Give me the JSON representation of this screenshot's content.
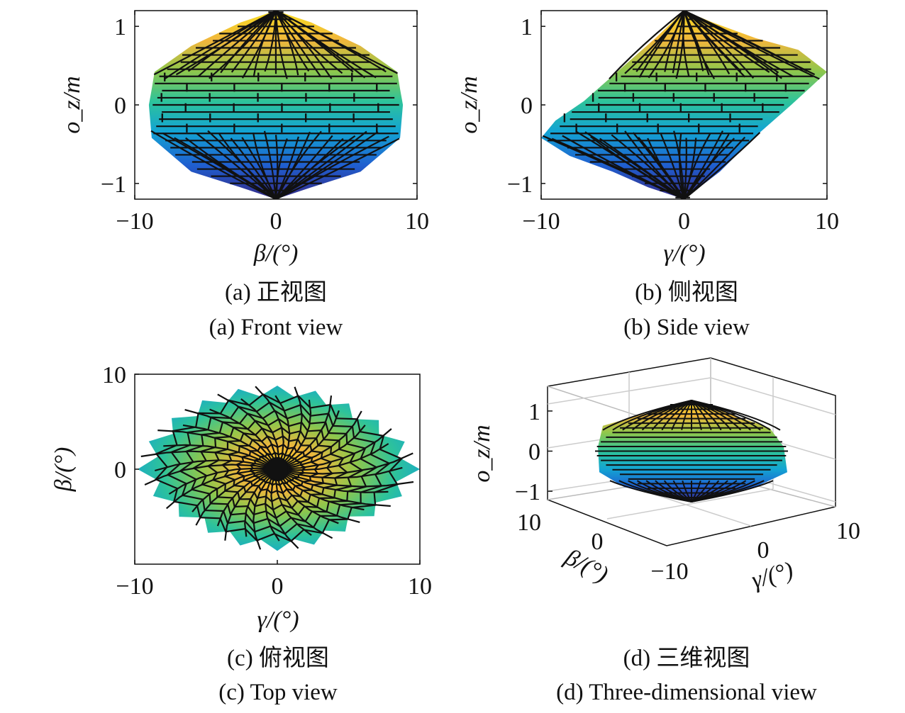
{
  "colors": {
    "colormap": [
      "#352a87",
      "#1569d8",
      "#13a4d3",
      "#26c39c",
      "#95c94b",
      "#f2b83b",
      "#f9e01f"
    ],
    "mesh_edge": "#111111",
    "axes": "#111111"
  },
  "chart_data": [
    {
      "id": "a",
      "type": "surface",
      "view": "front (projection onto beta–o_z plane)",
      "xlabel": "β/(°)",
      "ylabel": "o_z/m",
      "xlim": [
        -10,
        10
      ],
      "ylim": [
        -1.2,
        1.2
      ],
      "xticks": [
        "−10",
        "0",
        "10"
      ],
      "yticks": [
        "−1",
        "0",
        "1"
      ],
      "caption_cn": "(a) 正视图",
      "caption_en": "(a) Front view",
      "outline_x": [
        0,
        -2.5,
        -6,
        -8.6,
        -8.8,
        -9.0,
        -8.8,
        -6,
        -2.5,
        0,
        2.5,
        6,
        8.8,
        9.0,
        8.8,
        8.6,
        6,
        2.5,
        0
      ],
      "outline_y": [
        1.2,
        1.05,
        0.75,
        0.42,
        0.2,
        0.0,
        -0.42,
        -0.85,
        -1.05,
        -1.2,
        -1.05,
        -0.85,
        -0.42,
        0.0,
        0.2,
        0.42,
        0.75,
        1.05,
        1.2
      ]
    },
    {
      "id": "b",
      "type": "surface",
      "view": "side (projection onto gamma–o_z plane)",
      "xlabel": "γ/(°)",
      "ylabel": "o_z/m",
      "xlim": [
        -10,
        10
      ],
      "ylim": [
        -1.2,
        1.2
      ],
      "xticks": [
        "−10",
        "0",
        "10"
      ],
      "yticks": [
        "−1",
        "0",
        "1"
      ],
      "caption_cn": "(b) 侧视图",
      "caption_en": "(b) Side view",
      "outline_x": [
        0,
        2,
        5,
        8,
        10,
        9,
        7.5,
        5,
        2.5,
        0,
        -2.5,
        -5,
        -8,
        -10,
        -9,
        -7,
        -4.5,
        -2,
        0
      ],
      "outline_y": [
        1.2,
        1.05,
        0.85,
        0.7,
        0.42,
        0.25,
        0.0,
        -0.4,
        -0.85,
        -1.2,
        -1.05,
        -0.85,
        -0.65,
        -0.42,
        -0.2,
        0.05,
        0.45,
        0.85,
        1.2
      ]
    },
    {
      "id": "c",
      "type": "surface",
      "view": "top (projection onto gamma–beta plane)",
      "xlabel": "γ/(°)",
      "ylabel": "β/(°)",
      "xlim": [
        -10,
        10
      ],
      "ylim": [
        -10,
        10
      ],
      "xticks": [
        "−10",
        "0",
        "10"
      ],
      "yticks": [
        "0",
        "10"
      ],
      "caption_cn": "(c) 俯视图",
      "caption_en": "(c) Top view",
      "outline_r_by_angle_deg": {
        "0": 10,
        "45": 8.5,
        "90": 8.8,
        "135": 9.0,
        "180": 9.8,
        "225": 8.2,
        "270": 8.6,
        "315": 8.0
      }
    },
    {
      "id": "d",
      "type": "surface3d",
      "view": "three-dimensional",
      "xlabel": "γ/(°)",
      "ylabel": "β/(°)",
      "zlabel": "o_z/m",
      "xticks": [
        "−10",
        "0",
        "10"
      ],
      "yticks": [
        "10",
        "0"
      ],
      "zticks": [
        "1",
        "0",
        "−1"
      ],
      "zlim": [
        -1.2,
        1.2
      ],
      "caption_cn": "(d) 三维视图",
      "caption_en": "(d) Three-dimensional view"
    }
  ]
}
